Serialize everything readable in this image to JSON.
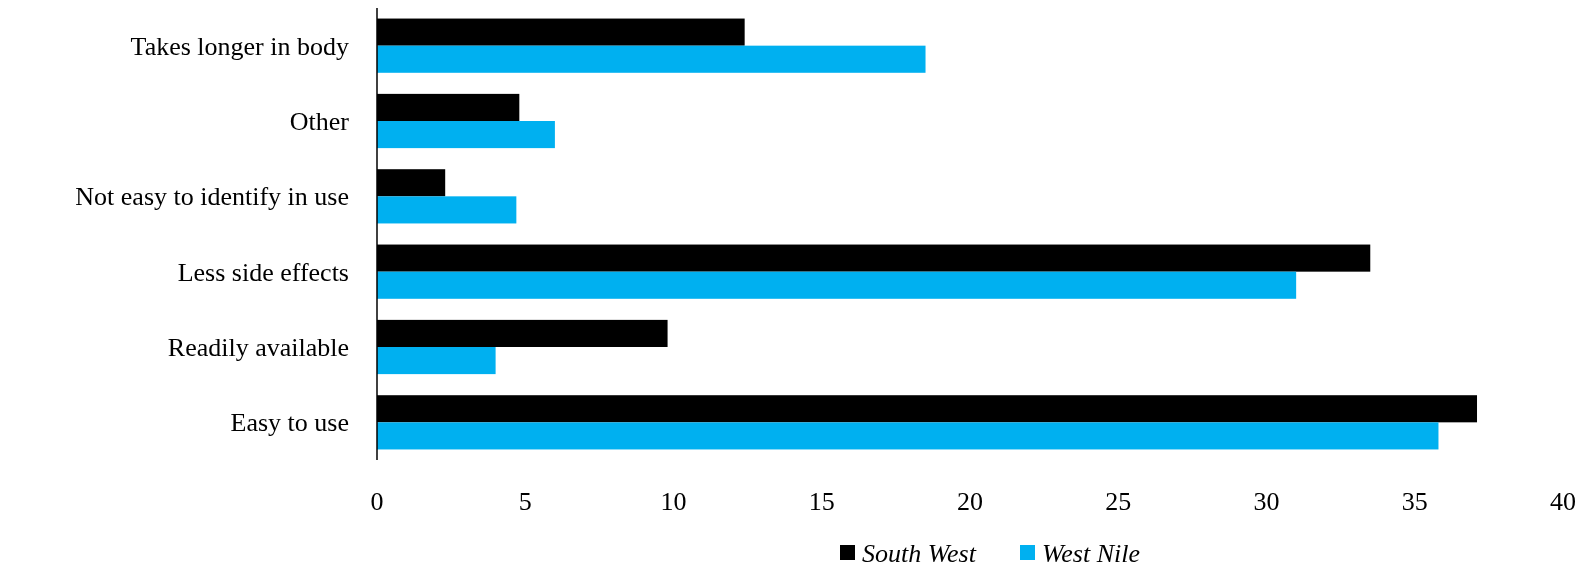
{
  "chart_data": {
    "type": "bar",
    "orientation": "horizontal",
    "categories": [
      "Takes longer in body",
      "Other",
      "Not easy to identify in use",
      "Less side effects",
      "Readily available",
      "Easy to use"
    ],
    "series": [
      {
        "name": "South West",
        "color": "#000000",
        "values": [
          12.4,
          4.8,
          2.3,
          33.5,
          9.8,
          37.1
        ]
      },
      {
        "name": "West Nile",
        "color": "#00b0f0",
        "values": [
          18.5,
          6.0,
          4.7,
          31.0,
          4.0,
          35.8
        ]
      }
    ],
    "xlim": [
      0,
      40
    ],
    "xticks": [
      0,
      5,
      10,
      15,
      20,
      25,
      30,
      35,
      40
    ],
    "grid": false,
    "legend": "bottom"
  }
}
